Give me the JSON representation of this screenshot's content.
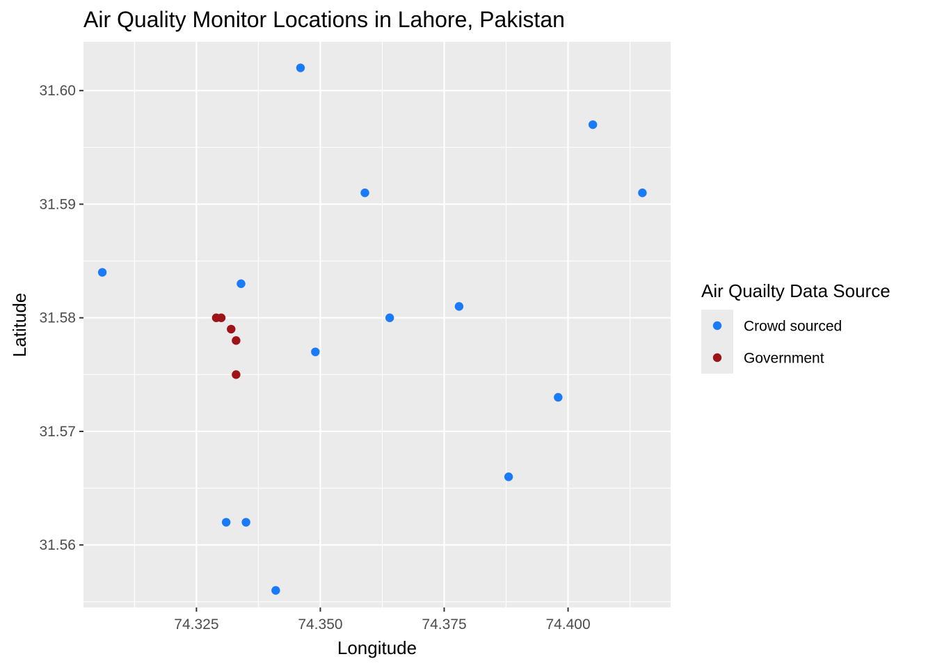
{
  "chart_data": {
    "type": "scatter",
    "title": "Air Quality Monitor Locations in Lahore, Pakistan",
    "xlabel": "Longitude",
    "ylabel": "Latitude",
    "xlim": [
      74.3022,
      74.4207
    ],
    "ylim": [
      31.5545,
      31.6043
    ],
    "x_ticks": [
      74.325,
      74.35,
      74.375,
      74.4
    ],
    "x_tick_labels": [
      "74.325",
      "74.350",
      "74.375",
      "74.400"
    ],
    "x_minor_ticks": [
      74.3125,
      74.3375,
      74.3625,
      74.3875,
      74.4125
    ],
    "y_ticks": [
      31.56,
      31.57,
      31.58,
      31.59,
      31.6
    ],
    "y_tick_labels": [
      "31.56",
      "31.57",
      "31.58",
      "31.59",
      "31.60"
    ],
    "y_minor_ticks": [
      31.555,
      31.565,
      31.575,
      31.585,
      31.595
    ],
    "grid": true,
    "legend": {
      "title": "Air Quailty Data Source",
      "position": "right"
    },
    "series": [
      {
        "name": "Crowd sourced",
        "color": "#1a7af8",
        "points": [
          {
            "x": 74.346,
            "y": 31.602
          },
          {
            "x": 74.405,
            "y": 31.597
          },
          {
            "x": 74.359,
            "y": 31.591
          },
          {
            "x": 74.415,
            "y": 31.591
          },
          {
            "x": 74.306,
            "y": 31.584
          },
          {
            "x": 74.334,
            "y": 31.583
          },
          {
            "x": 74.378,
            "y": 31.581
          },
          {
            "x": 74.364,
            "y": 31.58
          },
          {
            "x": 74.349,
            "y": 31.577
          },
          {
            "x": 74.398,
            "y": 31.573
          },
          {
            "x": 74.388,
            "y": 31.566
          },
          {
            "x": 74.331,
            "y": 31.562
          },
          {
            "x": 74.335,
            "y": 31.562
          },
          {
            "x": 74.341,
            "y": 31.556
          }
        ]
      },
      {
        "name": "Government",
        "color": "#9e1318",
        "points": [
          {
            "x": 74.329,
            "y": 31.58
          },
          {
            "x": 74.33,
            "y": 31.58
          },
          {
            "x": 74.332,
            "y": 31.579
          },
          {
            "x": 74.333,
            "y": 31.578
          },
          {
            "x": 74.333,
            "y": 31.575
          }
        ]
      }
    ]
  }
}
